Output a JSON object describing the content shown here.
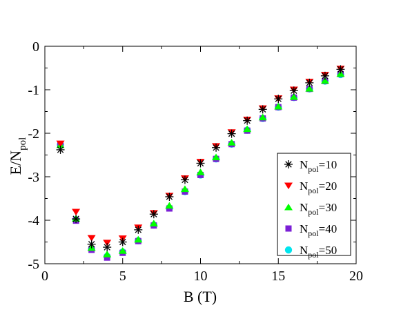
{
  "chart_data": {
    "type": "scatter",
    "xlabel": "B (T)",
    "ylabel_main": "E/N",
    "ylabel_sub": "pol",
    "xlim": [
      0,
      20
    ],
    "ylim": [
      -5,
      0
    ],
    "xticks": [
      0,
      5,
      10,
      15,
      20
    ],
    "yticks": [
      0,
      -1,
      -2,
      -3,
      -4,
      -5
    ],
    "grid": false,
    "legend_position": "right-middle",
    "x": [
      1,
      2,
      3,
      4,
      5,
      6,
      7,
      8,
      9,
      10,
      11,
      12,
      13,
      14,
      15,
      16,
      17,
      18,
      19
    ],
    "series": [
      {
        "name_main": "N",
        "name_sub": "pol",
        "name_suffix": "=10",
        "marker": "asterisk",
        "color": "#000000",
        "values": [
          -2.38,
          -3.97,
          -4.55,
          -4.62,
          -4.5,
          -4.22,
          -3.86,
          -3.46,
          -3.07,
          -2.69,
          -2.33,
          -2.01,
          -1.71,
          -1.45,
          -1.21,
          -1.02,
          -0.84,
          -0.68,
          -0.53
        ]
      },
      {
        "name_main": "N",
        "name_sub": "pol",
        "name_suffix": "=20",
        "marker": "triangle-down",
        "color": "#ff0000",
        "values": [
          -2.24,
          -3.81,
          -4.41,
          -4.52,
          -4.42,
          -4.17,
          -3.84,
          -3.44,
          -3.04,
          -2.66,
          -2.3,
          -1.98,
          -1.69,
          -1.43,
          -1.2,
          -1.0,
          -0.82,
          -0.66,
          -0.52
        ]
      },
      {
        "name_main": "N",
        "name_sub": "pol",
        "name_suffix": "=30",
        "marker": "triangle-up",
        "color": "#00ff00",
        "values": [
          -2.27,
          -3.96,
          -4.63,
          -4.78,
          -4.7,
          -4.44,
          -4.07,
          -3.66,
          -3.28,
          -2.89,
          -2.55,
          -2.21,
          -1.9,
          -1.63,
          -1.38,
          -1.16,
          -0.97,
          -0.79,
          -0.63
        ]
      },
      {
        "name_main": "N",
        "name_sub": "pol",
        "name_suffix": "=40",
        "marker": "square",
        "color": "#7b1fd6",
        "values": [
          -2.27,
          -4.01,
          -4.68,
          -4.86,
          -4.75,
          -4.48,
          -4.12,
          -3.73,
          -3.34,
          -2.96,
          -2.59,
          -2.25,
          -1.94,
          -1.66,
          -1.4,
          -1.18,
          -0.98,
          -0.8,
          -0.64
        ]
      },
      {
        "name_main": "N",
        "name_sub": "pol",
        "name_suffix": "=50",
        "marker": "circle",
        "color": "#00e5ee",
        "values": [
          -2.26,
          -3.99,
          -4.66,
          -4.83,
          -4.73,
          -4.47,
          -4.11,
          -3.72,
          -3.34,
          -2.96,
          -2.59,
          -2.25,
          -1.93,
          -1.66,
          -1.4,
          -1.18,
          -0.98,
          -0.8,
          -0.65
        ]
      }
    ]
  }
}
